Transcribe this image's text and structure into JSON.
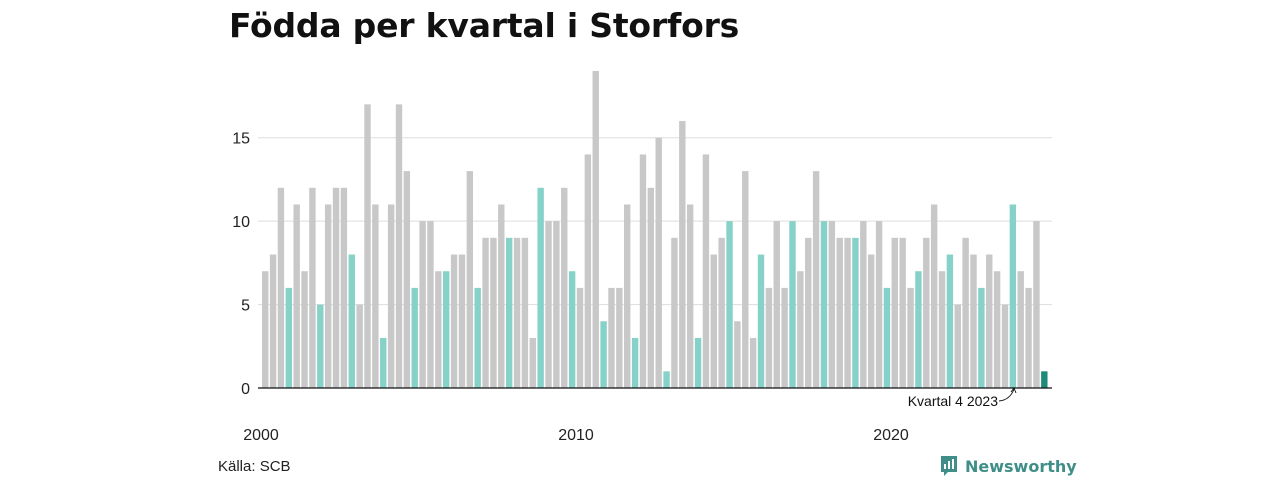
{
  "title": "Födda per kvartal i Storfors",
  "source": "Källa: SCB",
  "brand": "Newsworthy",
  "colors": {
    "bar": "#c8c8c8",
    "highlight": "#86d2c8",
    "latest": "#1d8a7a",
    "grid": "#dddddd",
    "axis": "#111111",
    "brand": "#3f8f88"
  },
  "chart_data": {
    "type": "bar",
    "title": "Födda per kvartal i Storfors",
    "xlabel": "",
    "ylabel": "",
    "ylim": [
      0,
      19
    ],
    "y_ticks": [
      0,
      5,
      10,
      15
    ],
    "x_tick_labels": [
      "2000",
      "2010",
      "2020"
    ],
    "annotation": "Kvartal 4 2023",
    "highlight_note": "Fourth quarter of each year highlighted; latest quarter darker",
    "series": [
      {
        "values": [
          7,
          8,
          12,
          6,
          11,
          7,
          12,
          5,
          11,
          12,
          12,
          8,
          5,
          17,
          11,
          3,
          11,
          17,
          13,
          6,
          10,
          10,
          7,
          7,
          8,
          8,
          13,
          6,
          9,
          9,
          11,
          9,
          9,
          9,
          3,
          12,
          10,
          10,
          12,
          7,
          6,
          14,
          19,
          4,
          6,
          6,
          11,
          3,
          14,
          12,
          15,
          1,
          9,
          16,
          11,
          3,
          14,
          8,
          9,
          10,
          4,
          13,
          3,
          8,
          6,
          10,
          6,
          10,
          7,
          9,
          13,
          10,
          10,
          9,
          9,
          9,
          10,
          8,
          10,
          6,
          9,
          9,
          6,
          7,
          9,
          11,
          7,
          8,
          5,
          9,
          8,
          6,
          8,
          7,
          5,
          11,
          7,
          6,
          10,
          1
        ]
      }
    ]
  }
}
